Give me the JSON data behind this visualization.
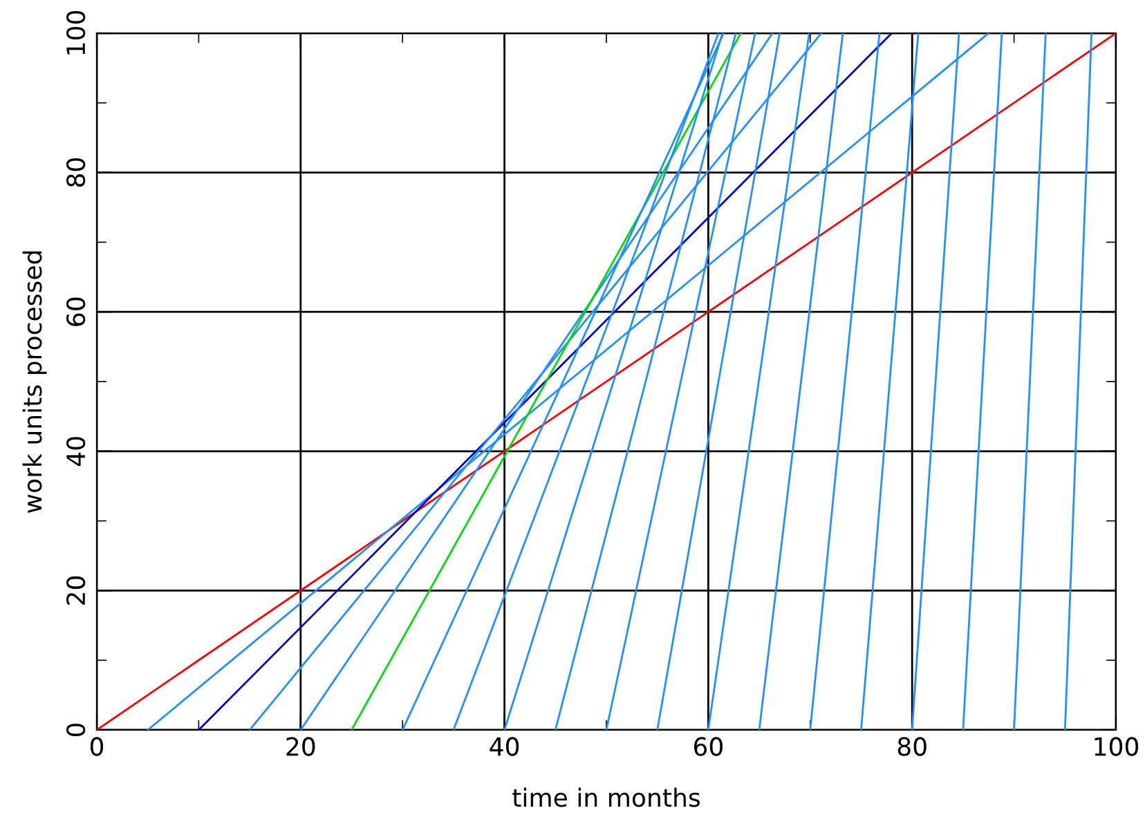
{
  "chart_data": {
    "type": "line",
    "xlabel": "time in months",
    "ylabel": "work units processed",
    "xlim": [
      0,
      100
    ],
    "ylim": [
      0,
      100
    ],
    "xticks": [
      0,
      {
        "value": 10,
        "label": null
      },
      20,
      {
        "value": 30,
        "label": null
      },
      40,
      {
        "value": 50,
        "label": null
      },
      60,
      {
        "value": 70,
        "label": null
      },
      80,
      {
        "value": 90,
        "label": null
      },
      100
    ],
    "yticks": [
      0,
      {
        "value": 10,
        "label": null
      },
      20,
      {
        "value": 30,
        "label": null
      },
      40,
      {
        "value": 50,
        "label": null
      },
      60,
      {
        "value": 70,
        "label": null
      },
      80,
      {
        "value": 90,
        "label": null
      },
      100
    ],
    "grid": true,
    "marker": "none",
    "line_style": "solid",
    "series": [
      {
        "color": "#ff0000",
        "x": [
          0,
          100
        ],
        "values": [
          0,
          100
        ]
      },
      {
        "color": "#1e90ff",
        "x": [
          5,
          87.5
        ],
        "values": [
          0,
          100
        ]
      },
      {
        "color": "#0000cd",
        "x": [
          10,
          78
        ],
        "values": [
          0,
          100
        ]
      },
      {
        "color": "#1e90ff",
        "x": [
          15,
          71.1
        ],
        "values": [
          0,
          100
        ]
      },
      {
        "color": "#1e90ff",
        "x": [
          20,
          66.3
        ],
        "values": [
          0,
          100
        ]
      },
      {
        "color": "#00dd00",
        "x": [
          25,
          63.2
        ],
        "values": [
          0,
          100
        ]
      },
      {
        "color": "#1e90ff",
        "x": [
          30,
          61.5
        ],
        "values": [
          0,
          100
        ]
      },
      {
        "color": "#1e90ff",
        "x": [
          35,
          61
        ],
        "values": [
          0,
          100
        ]
      },
      {
        "color": "#1e90ff",
        "x": [
          40,
          61.4
        ],
        "values": [
          0,
          100
        ]
      },
      {
        "color": "#1e90ff",
        "x": [
          45,
          62.7
        ],
        "values": [
          0,
          100
        ]
      },
      {
        "color": "#1e90ff",
        "x": [
          50,
          64.6
        ],
        "values": [
          0,
          100
        ]
      },
      {
        "color": "#1e90ff",
        "x": [
          55,
          67
        ],
        "values": [
          0,
          100
        ]
      },
      {
        "color": "#1e90ff",
        "x": [
          60,
          69.9
        ],
        "values": [
          0,
          100
        ]
      },
      {
        "color": "#1e90ff",
        "x": [
          65,
          73.2
        ],
        "values": [
          0,
          100
        ]
      },
      {
        "color": "#1e90ff",
        "x": [
          70,
          76.8
        ],
        "values": [
          0,
          100
        ]
      },
      {
        "color": "#1e90ff",
        "x": [
          75,
          80.6
        ],
        "values": [
          0,
          100
        ]
      },
      {
        "color": "#1e90ff",
        "x": [
          80,
          84.6
        ],
        "values": [
          0,
          100
        ]
      },
      {
        "color": "#1e90ff",
        "x": [
          85,
          88.8
        ],
        "values": [
          0,
          100
        ]
      },
      {
        "color": "#1e90ff",
        "x": [
          90,
          93.1
        ],
        "values": [
          0,
          100
        ]
      },
      {
        "color": "#1e90ff",
        "x": [
          95,
          97.6
        ],
        "values": [
          0,
          100
        ]
      }
    ]
  }
}
